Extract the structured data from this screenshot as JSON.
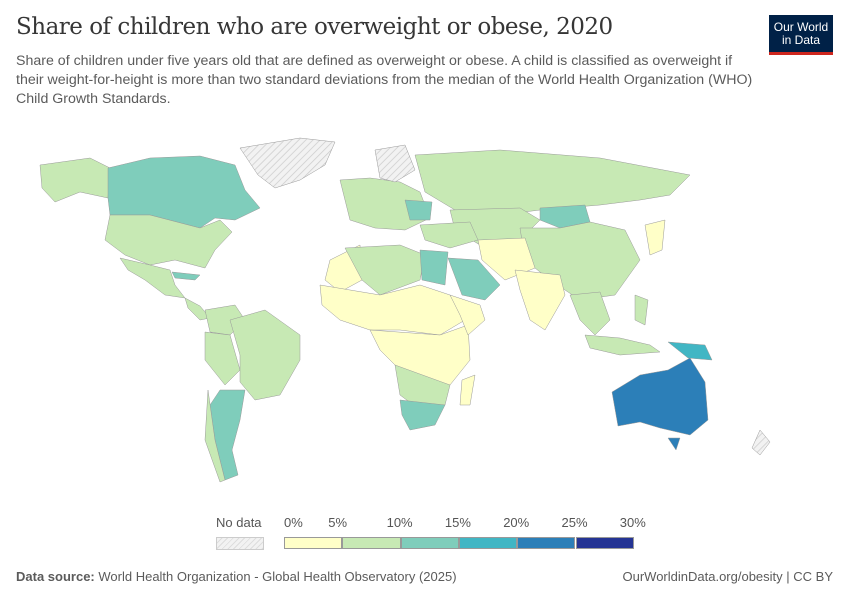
{
  "header": {
    "title": "Share of children who are overweight or obese, 2020",
    "subtitle": "Share of children under five years old that are defined as overweight or obese. A child is classified as overweight if their weight-for-height is more than two standard deviations from the median of the World Health Organization (WHO) Child Growth Standards.",
    "logo_line1": "Our World",
    "logo_line2": "in Data"
  },
  "legend": {
    "no_data_label": "No data",
    "ticks": [
      "0%",
      "5%",
      "10%",
      "15%",
      "20%",
      "25%",
      "30%"
    ],
    "bins": [
      {
        "range": [
          0,
          5
        ],
        "color": "#ffffc8"
      },
      {
        "range": [
          5,
          10
        ],
        "color": "#c7e9b4"
      },
      {
        "range": [
          10,
          15
        ],
        "color": "#7fcdbb"
      },
      {
        "range": [
          15,
          20
        ],
        "color": "#41b6c4"
      },
      {
        "range": [
          20,
          25
        ],
        "color": "#2c7fb8"
      },
      {
        "range": [
          25,
          30
        ],
        "color": "#253494"
      }
    ],
    "no_data_color": "#e6e6e6"
  },
  "footer": {
    "source_label": "Data source:",
    "source": "World Health Organization - Global Health Observatory (2025)",
    "url": "OurWorldinData.org/obesity | CC BY"
  }
}
